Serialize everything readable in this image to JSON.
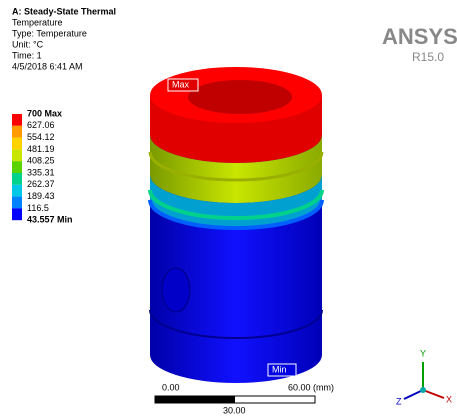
{
  "header": {
    "title": "A: Steady-State Thermal",
    "lines": [
      "Temperature",
      "Type: Temperature",
      "Unit: °C",
      "Time: 1",
      "4/5/2018 6:41 AM"
    ]
  },
  "logo": {
    "name": "ANSYS",
    "release": "R15.0"
  },
  "legend": {
    "labels": [
      "700 Max",
      "627.06",
      "554.12",
      "481.19",
      "408.25",
      "335.31",
      "262.37",
      "189.43",
      "116.5",
      "43.557 Min"
    ],
    "colors": [
      "#ff0000",
      "#ff9a00",
      "#ffd200",
      "#c8e600",
      "#5ad200",
      "#00d28c",
      "#00c8e6",
      "#0082ff",
      "#0000ff"
    ]
  },
  "probes": {
    "max": "Max",
    "min": "Min"
  },
  "scale": {
    "start": "0.00",
    "end": "60.00 (mm)",
    "mid": "30.00"
  },
  "triad": {
    "x": "X",
    "y": "Y",
    "z": "Z"
  }
}
